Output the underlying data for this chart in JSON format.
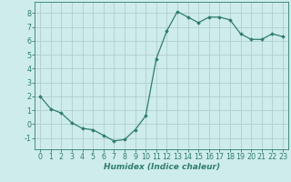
{
  "xlabel": "Humidex (Indice chaleur)",
  "x": [
    0,
    1,
    2,
    3,
    4,
    5,
    6,
    7,
    8,
    9,
    10,
    11,
    12,
    13,
    14,
    15,
    16,
    17,
    18,
    19,
    20,
    21,
    22,
    23
  ],
  "y": [
    2.0,
    1.1,
    0.8,
    0.1,
    -0.3,
    -0.4,
    -0.8,
    -1.2,
    -1.1,
    -0.4,
    0.6,
    4.7,
    6.7,
    8.1,
    7.7,
    7.3,
    7.7,
    7.7,
    7.5,
    6.5,
    6.1,
    6.1,
    6.5,
    6.3
  ],
  "line_color": "#2e7d6e",
  "marker": "D",
  "marker_size": 1.8,
  "line_width": 0.9,
  "bg_color": "#ceecea",
  "grid_color": "#b0ceca",
  "tick_color": "#2e7d6e",
  "spine_color": "#2e7d6e",
  "ylim": [
    -1.8,
    8.8
  ],
  "yticks": [
    -1,
    0,
    1,
    2,
    3,
    4,
    5,
    6,
    7,
    8
  ],
  "xlim": [
    -0.5,
    23.5
  ],
  "xlabel_fontsize": 6.5,
  "tick_fontsize": 5.8
}
